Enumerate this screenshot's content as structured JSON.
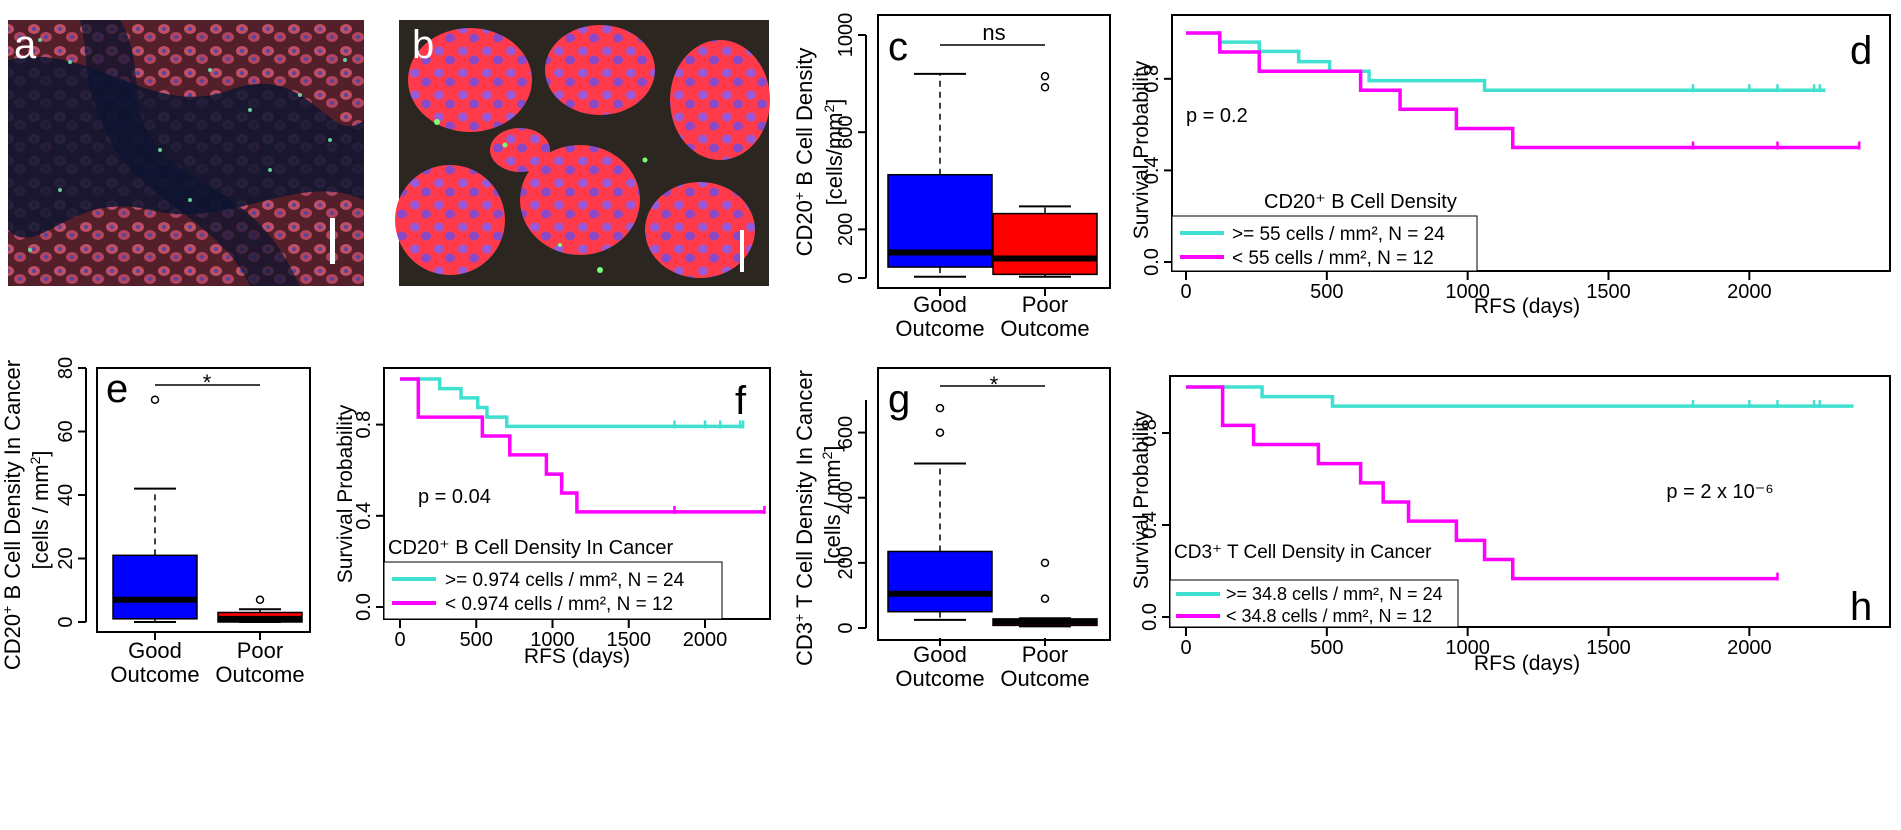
{
  "panels": {
    "a": {
      "letter": "a"
    },
    "b": {
      "letter": "b"
    },
    "c": {
      "letter": "c"
    },
    "d": {
      "letter": "d"
    },
    "e": {
      "letter": "e"
    },
    "f": {
      "letter": "f"
    },
    "g": {
      "letter": "g"
    },
    "h": {
      "letter": "h"
    }
  },
  "colors": {
    "blue": "#0000ff",
    "red": "#ff0000",
    "teal": "#40e0d0",
    "magenta": "#ff00ff"
  },
  "chart_data": [
    {
      "id": "c",
      "type": "box",
      "ylabel_line1": "CD20",
      "ylabel_sup": "+",
      "ylabel_line1_rest": " B Cell Density",
      "ylabel_line2": "[cells/mm",
      "ylabel_line2_sup": "2",
      "ylabel_line2_end": "]",
      "categories": [
        "Good\nOutcome",
        "Poor\nOutcome"
      ],
      "cat_lines": [
        [
          "Good",
          "Outcome"
        ],
        [
          "Poor",
          "Outcome"
        ]
      ],
      "ylim": [
        0,
        1000
      ],
      "yticks": [
        0,
        200,
        600,
        1000
      ],
      "significance": "ns",
      "boxes": [
        {
          "min": 5,
          "q1": 45,
          "median": 105,
          "q3": 425,
          "max": 840,
          "outliers": [],
          "color": "#0000ff"
        },
        {
          "min": 5,
          "q1": 15,
          "median": 80,
          "q3": 265,
          "max": 295,
          "outliers": [
            785,
            830
          ],
          "color": "#ff0000"
        }
      ]
    },
    {
      "id": "d",
      "type": "line",
      "xlabel": "RFS (days)",
      "ylabel": "Survival Probability",
      "xlim": [
        0,
        2400
      ],
      "ylim": [
        0,
        1
      ],
      "xticks": [
        0,
        500,
        1000,
        1500,
        2000
      ],
      "yticks": [
        0.0,
        0.4,
        0.8
      ],
      "pvalue": "p = 0.2",
      "legend_title": "CD20⁺ B Cell Density",
      "series": [
        {
          "name": ">= 55 cells / mm², N = 24",
          "color": "#40e0d0",
          "steps": [
            [
              0,
              1.0
            ],
            [
              120,
              0.96
            ],
            [
              260,
              0.92
            ],
            [
              400,
              0.875
            ],
            [
              510,
              0.833
            ],
            [
              650,
              0.792
            ],
            [
              1060,
              0.75
            ],
            [
              2270,
              0.75
            ]
          ],
          "censor": [
            1800,
            2000,
            2100,
            2230,
            2250
          ]
        },
        {
          "name": "< 55 cells / mm², N = 12",
          "color": "#ff00ff",
          "steps": [
            [
              0,
              1.0
            ],
            [
              120,
              0.917
            ],
            [
              260,
              0.833
            ],
            [
              620,
              0.75
            ],
            [
              760,
              0.667
            ],
            [
              960,
              0.583
            ],
            [
              1160,
              0.5
            ],
            [
              2390,
              0.5
            ]
          ],
          "censor": [
            1800,
            2100,
            2390
          ]
        }
      ]
    },
    {
      "id": "e",
      "type": "box",
      "ylabel_line1": "CD20",
      "ylabel_sup": "+",
      "ylabel_line1_rest": " B Cell Density In Cancer",
      "ylabel_line2": "[cells / mm",
      "ylabel_line2_sup": "2",
      "ylabel_line2_end": "]",
      "categories": [
        "Good\nOutcome",
        "Poor\nOutcome"
      ],
      "cat_lines": [
        [
          "Good",
          "Outcome"
        ],
        [
          "Poor",
          "Outcome"
        ]
      ],
      "ylim": [
        0,
        80
      ],
      "yticks": [
        0,
        20,
        40,
        60,
        80
      ],
      "significance": "*",
      "boxes": [
        {
          "min": 0,
          "q1": 1,
          "median": 7,
          "q3": 21,
          "max": 42,
          "outliers": [
            70
          ],
          "color": "#0000ff"
        },
        {
          "min": 0,
          "q1": 0,
          "median": 1,
          "q3": 3,
          "max": 4,
          "outliers": [
            7
          ],
          "color": "#ff0000"
        }
      ]
    },
    {
      "id": "f",
      "type": "line",
      "xlabel": "RFS (days)",
      "ylabel": "Survival Probability",
      "xlim": [
        0,
        2400
      ],
      "ylim": [
        0,
        1
      ],
      "xticks": [
        0,
        500,
        1000,
        1500,
        2000
      ],
      "yticks": [
        0.0,
        0.4,
        0.8
      ],
      "pvalue": "p = 0.04",
      "legend_title": "CD20⁺ B Cell Density In Cancer",
      "series": [
        {
          "name": ">= 0.974 cells / mm², N = 24",
          "color": "#40e0d0",
          "steps": [
            [
              0,
              1.0
            ],
            [
              260,
              0.958
            ],
            [
              400,
              0.917
            ],
            [
              510,
              0.875
            ],
            [
              570,
              0.833
            ],
            [
              700,
              0.792
            ],
            [
              2250,
              0.792
            ]
          ],
          "censor": [
            1800,
            2000,
            2100,
            2230,
            2250
          ]
        },
        {
          "name": "< 0.974 cells / mm², N = 12",
          "color": "#ff00ff",
          "steps": [
            [
              0,
              1.0
            ],
            [
              120,
              0.833
            ],
            [
              540,
              0.75
            ],
            [
              720,
              0.667
            ],
            [
              960,
              0.583
            ],
            [
              1060,
              0.5
            ],
            [
              1160,
              0.417
            ],
            [
              2390,
              0.417
            ]
          ],
          "censor": [
            1800,
            2390
          ]
        }
      ]
    },
    {
      "id": "g",
      "type": "box",
      "ylabel_line1": "CD3",
      "ylabel_sup": "+",
      "ylabel_line1_rest": " T Cell Density In Cancer",
      "ylabel_line2": "[cells / mm",
      "ylabel_line2_sup": "2",
      "ylabel_line2_end": "]",
      "categories": [
        "Good\nOutcome",
        "Poor\nOutcome"
      ],
      "cat_lines": [
        [
          "Good",
          "Outcome"
        ],
        [
          "Poor",
          "Outcome"
        ]
      ],
      "ylim": [
        0,
        700
      ],
      "yticks": [
        0,
        200,
        400,
        600
      ],
      "significance": "*",
      "boxes": [
        {
          "min": 25,
          "q1": 50,
          "median": 105,
          "q3": 235,
          "max": 505,
          "outliers": [
            600,
            675
          ],
          "color": "#0000ff"
        },
        {
          "min": 5,
          "q1": 8,
          "median": 20,
          "q3": 28,
          "max": 30,
          "outliers": [
            90,
            200
          ],
          "color": "#ff0000"
        }
      ]
    },
    {
      "id": "h",
      "type": "line",
      "xlabel": "RFS (days)",
      "ylabel": "Survival Probability",
      "xlim": [
        0,
        2400
      ],
      "ylim": [
        0,
        1
      ],
      "xticks": [
        0,
        500,
        1000,
        1500,
        2000
      ],
      "yticks": [
        0.0,
        0.4,
        0.8
      ],
      "pvalue": "p = 2 x 10⁻⁶",
      "legend_title": "CD3⁺ T Cell Density in Cancer",
      "series": [
        {
          "name": ">= 34.8 cells / mm², N = 24",
          "color": "#40e0d0",
          "steps": [
            [
              0,
              1.0
            ],
            [
              270,
              0.958
            ],
            [
              520,
              0.917
            ],
            [
              2370,
              0.917
            ]
          ],
          "censor": [
            1800,
            2000,
            2100,
            2230,
            2250
          ]
        },
        {
          "name": "< 34.8 cells / mm², N = 12",
          "color": "#ff00ff",
          "steps": [
            [
              0,
              1.0
            ],
            [
              130,
              0.833
            ],
            [
              240,
              0.75
            ],
            [
              470,
              0.667
            ],
            [
              620,
              0.583
            ],
            [
              700,
              0.5
            ],
            [
              790,
              0.417
            ],
            [
              960,
              0.333
            ],
            [
              1060,
              0.25
            ],
            [
              1160,
              0.167
            ],
            [
              2100,
              0.167
            ]
          ],
          "censor": [
            2100
          ]
        }
      ]
    }
  ]
}
